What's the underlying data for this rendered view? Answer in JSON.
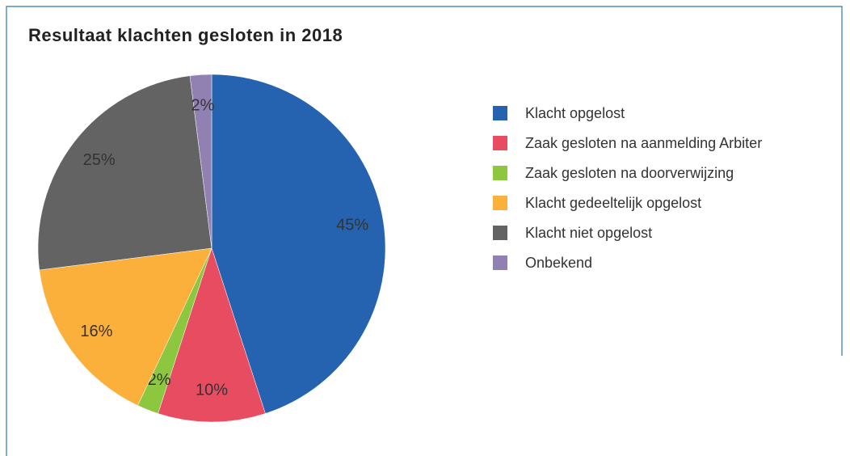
{
  "chart_data": {
    "type": "pie",
    "title": "Resultaat klachten gesloten in 2018",
    "categories": [
      "Klacht opgelost",
      "Zaak gesloten na aanmelding Arbiter",
      "Zaak gesloten na doorverwijzing",
      "Klacht gedeeltelijk opgelost",
      "Klacht niet opgelost",
      "Onbekend"
    ],
    "values": [
      45,
      10,
      2,
      16,
      25,
      2
    ],
    "value_labels": [
      "45%",
      "10%",
      "2%",
      "16%",
      "25%",
      "2%"
    ],
    "colors": [
      "#2563b0",
      "#e84c61",
      "#8dc63f",
      "#fbb03b",
      "#636363",
      "#9181b3"
    ],
    "legend": "right"
  }
}
